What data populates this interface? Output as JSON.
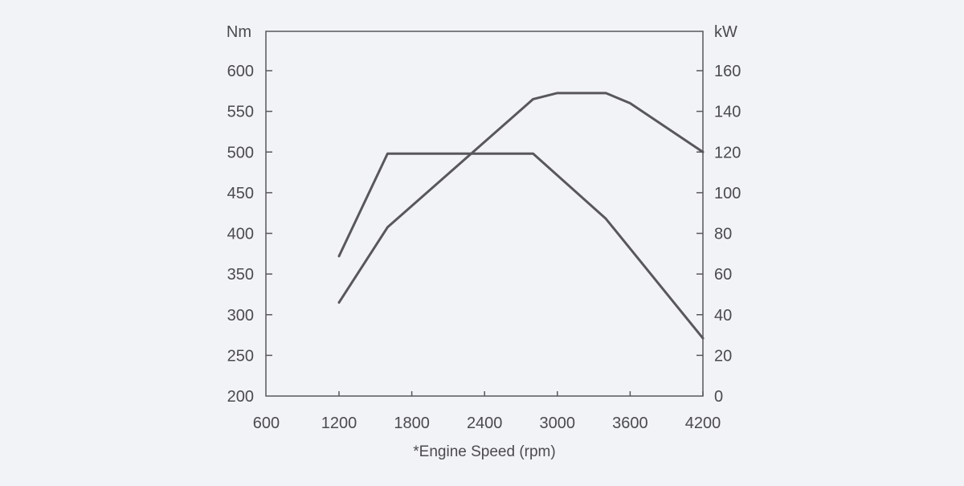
{
  "chart_data": {
    "type": "line",
    "xlabel": "*Engine Speed (rpm)",
    "x_ticks": [
      "600",
      "1200",
      "1800",
      "2400",
      "3000",
      "3600",
      "4200"
    ],
    "xlim": [
      600,
      4200
    ],
    "y_left": {
      "unit": "Nm",
      "ticks": [
        "200",
        "250",
        "300",
        "350",
        "400",
        "450",
        "500",
        "550",
        "600"
      ],
      "ylim": [
        200,
        650
      ]
    },
    "y_right": {
      "unit": "kW",
      "ticks": [
        "0",
        "20",
        "40",
        "60",
        "80",
        "100",
        "120",
        "140",
        "160"
      ],
      "ylim": [
        0,
        180
      ]
    },
    "grid": false,
    "line_color": "#58585c",
    "series": [
      {
        "axis": "left",
        "x": [
          1200,
          1600,
          2800,
          3400,
          4200
        ],
        "y": [
          372,
          498,
          498,
          418,
          271
        ]
      },
      {
        "axis": "right",
        "x": [
          1200,
          1600,
          2800,
          3000,
          3400,
          3600,
          4200
        ],
        "y": [
          46,
          83,
          146,
          149,
          149,
          144,
          120
        ]
      }
    ]
  }
}
